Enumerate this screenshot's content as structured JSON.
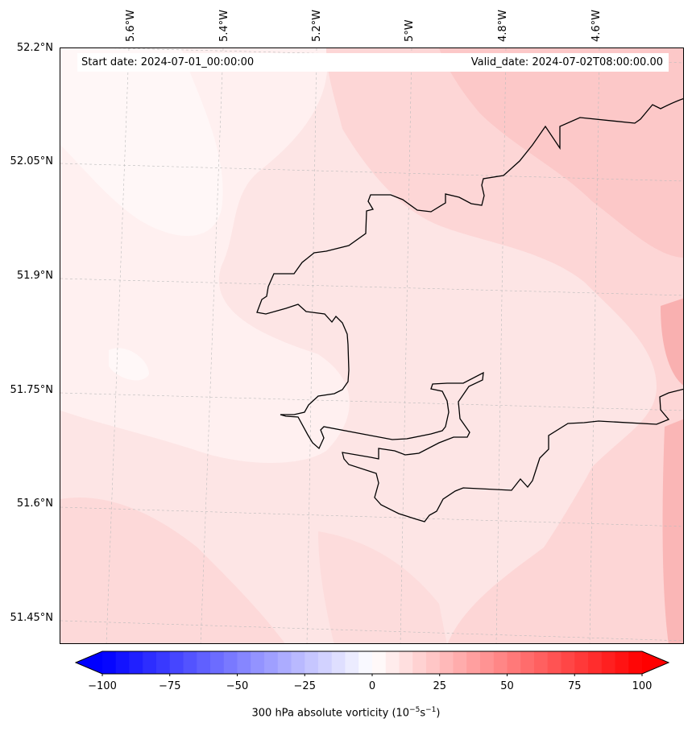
{
  "map": {
    "start_date": "Start date: 2024-07-01_00:00:00",
    "valid_date": "Valid_date: 2024-07-02T08:00:00.00",
    "lat_labels": [
      "52.2°N",
      "52.05°N",
      "51.9°N",
      "51.75°N",
      "51.6°N",
      "51.45°N"
    ],
    "lon_labels": [
      "5.6°W",
      "5.4°W",
      "5.2°W",
      "5°W",
      "4.8°W",
      "4.6°W"
    ],
    "field": "300 hPa absolute vorticity",
    "coastline_color": "#000000",
    "gridlines": "on (dashed, light gray)"
  },
  "colorbar": {
    "ticks": [
      "−100",
      "−75",
      "−50",
      "−25",
      "0",
      "25",
      "50",
      "75",
      "100"
    ],
    "range": [
      -100,
      100
    ],
    "levels": 41,
    "extend": "both",
    "colormap": "bwr",
    "label_main": "300 hPa absolute vorticity (10",
    "label_exp1": "−5",
    "label_mid": "s",
    "label_exp2": "−1",
    "label_end": ")"
  }
}
